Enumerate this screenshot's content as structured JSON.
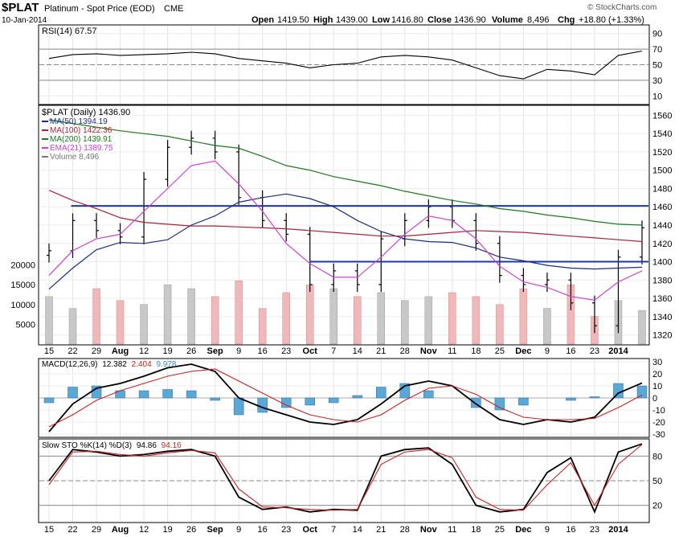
{
  "header": {
    "symbol": "$PLAT",
    "name": "Platinum",
    "desc": " - Spot Price (EOD)",
    "exchange": "CME",
    "date": "10-Jan-2014",
    "open_label": "Open",
    "open": "1419.50",
    "high_label": "High",
    "high": "1439.00",
    "low_label": "Low",
    "low": "1416.80",
    "close_label": "Close",
    "close": "1436.90",
    "volume_label": "Volume",
    "volume": "8,496",
    "chg_label": "Chg",
    "chg": "+18.80 (+1.33%)",
    "watermark": "© StockCharts.com"
  },
  "rsi": {
    "legend": "RSI(14) 67.57",
    "ticks": [
      "90",
      "70",
      "50",
      "30",
      "10"
    ]
  },
  "price": {
    "legend_title": "$PLAT (Daily) 1436.90",
    "legend": [
      {
        "label": "MA(50) 1394.19",
        "color": "#1a2a8a"
      },
      {
        "label": "MA(100) 1422.36",
        "color": "#b0203a"
      },
      {
        "label": "MA(200) 1439.91",
        "color": "#1a7a1a"
      },
      {
        "label": "EMA(21) 1389.75",
        "color": "#d040d0"
      },
      {
        "label": "Volume 8,496",
        "color": "#777777"
      }
    ],
    "ticks": [
      "1560",
      "1540",
      "1520",
      "1500",
      "1480",
      "1460",
      "1440",
      "1420",
      "1400",
      "1380",
      "1360",
      "1340",
      "1320"
    ],
    "volume_ticks": [
      "20000",
      "15000",
      "10000",
      "5000"
    ]
  },
  "xaxis": {
    "labels": [
      "15",
      "22",
      "29",
      "Aug",
      "12",
      "19",
      "26",
      "Sep",
      "9",
      "16",
      "23",
      "Oct",
      "7",
      "14",
      "21",
      "28",
      "Nov",
      "11",
      "18",
      "25",
      "Dec",
      "9",
      "16",
      "23",
      "2014"
    ]
  },
  "macd": {
    "legend_name": "MACD(12,26,9)",
    "macd": "12.382",
    "signal": "2.404",
    "hist": "9.978",
    "ticks": [
      "30",
      "20",
      "10",
      "0",
      "-10",
      "-20",
      "-30"
    ]
  },
  "sto": {
    "legend_name": "Slow STO %K(14) %D(3)",
    "k": "94.86",
    "d": "94.16",
    "ticks": [
      "80",
      "50",
      "20"
    ]
  },
  "chart_data": {
    "type": "line",
    "title": "$PLAT Platinum - Spot Price (EOD) CME",
    "x": [
      "15",
      "22",
      "29",
      "Aug",
      "12",
      "19",
      "26",
      "Sep",
      "9",
      "16",
      "23",
      "Oct",
      "7",
      "14",
      "21",
      "28",
      "Nov",
      "11",
      "18",
      "25",
      "Dec",
      "9",
      "16",
      "23",
      "2014",
      "10-Jan"
    ],
    "price_close": [
      1412,
      1445,
      1434,
      1427,
      1490,
      1525,
      1535,
      1520,
      1470,
      1445,
      1430,
      1375,
      1390,
      1375,
      1425,
      1445,
      1460,
      1445,
      1420,
      1385,
      1375,
      1380,
      1355,
      1330,
      1405,
      1437
    ],
    "series": [
      {
        "name": "MA(50)",
        "values": [
          1370,
          1393,
          1413,
          1421,
          1420,
          1424,
          1440,
          1450,
          1465,
          1470,
          1474,
          1469,
          1460,
          1445,
          1433,
          1425,
          1422,
          1421,
          1415,
          1405,
          1401,
          1396,
          1393,
          1392,
          1393,
          1394
        ]
      },
      {
        "name": "MA(100)",
        "values": [
          1478,
          1467,
          1458,
          1448,
          1443,
          1441,
          1439,
          1439,
          1438,
          1437,
          1436,
          1434,
          1432,
          1430,
          1428,
          1428,
          1430,
          1432,
          1434,
          1433,
          1432,
          1430,
          1428,
          1426,
          1424,
          1422
        ]
      },
      {
        "name": "MA(200)",
        "values": [
          1555,
          1551,
          1547,
          1543,
          1540,
          1537,
          1532,
          1527,
          1524,
          1515,
          1505,
          1500,
          1493,
          1488,
          1483,
          1477,
          1472,
          1467,
          1463,
          1458,
          1455,
          1451,
          1448,
          1444,
          1441,
          1440
        ]
      },
      {
        "name": "EMA(21)",
        "values": [
          1385,
          1412,
          1425,
          1430,
          1455,
          1480,
          1505,
          1510,
          1485,
          1455,
          1420,
          1398,
          1383,
          1383,
          1405,
          1430,
          1450,
          1445,
          1425,
          1395,
          1378,
          1372,
          1362,
          1358,
          1378,
          1390
        ]
      }
    ],
    "support_lines": [
      1461,
      1400
    ],
    "volume": [
      12000,
      9000,
      14000,
      11000,
      10000,
      15000,
      14000,
      12000,
      16000,
      9000,
      13000,
      15000,
      14000,
      12000,
      13000,
      11000,
      12000,
      13000,
      12000,
      10000,
      14000,
      9000,
      15000,
      7000,
      11000,
      8496
    ],
    "rsi": [
      58,
      63,
      64,
      62,
      63,
      64,
      66,
      64,
      58,
      55,
      52,
      46,
      50,
      52,
      60,
      62,
      60,
      56,
      46,
      36,
      32,
      44,
      42,
      37,
      62,
      67.57
    ],
    "macd_line": [
      -28,
      -5,
      8,
      12,
      18,
      25,
      28,
      22,
      0,
      -8,
      -14,
      -20,
      -22,
      -18,
      -5,
      10,
      14,
      10,
      -5,
      -18,
      -22,
      -18,
      -20,
      -16,
      4,
      12.38
    ],
    "macd_signal": [
      -24,
      -14,
      -2,
      6,
      12,
      18,
      22,
      24,
      14,
      4,
      -6,
      -14,
      -18,
      -20,
      -14,
      -2,
      8,
      10,
      3,
      -8,
      -16,
      -18,
      -18,
      -17,
      -8,
      2.4
    ],
    "sto_k": [
      50,
      88,
      85,
      80,
      82,
      86,
      88,
      80,
      30,
      15,
      18,
      12,
      15,
      14,
      80,
      88,
      90,
      70,
      20,
      12,
      15,
      60,
      78,
      12,
      85,
      94.86
    ],
    "sto_d": [
      45,
      85,
      86,
      82,
      80,
      84,
      87,
      84,
      40,
      18,
      17,
      15,
      14,
      15,
      70,
      85,
      88,
      78,
      30,
      15,
      14,
      45,
      72,
      20,
      70,
      94.16
    ],
    "ylim_price": [
      1310,
      1570
    ],
    "ylim_rsi": [
      0,
      100
    ],
    "ylim_macd": [
      -32,
      32
    ],
    "ylim_sto": [
      0,
      100
    ]
  }
}
